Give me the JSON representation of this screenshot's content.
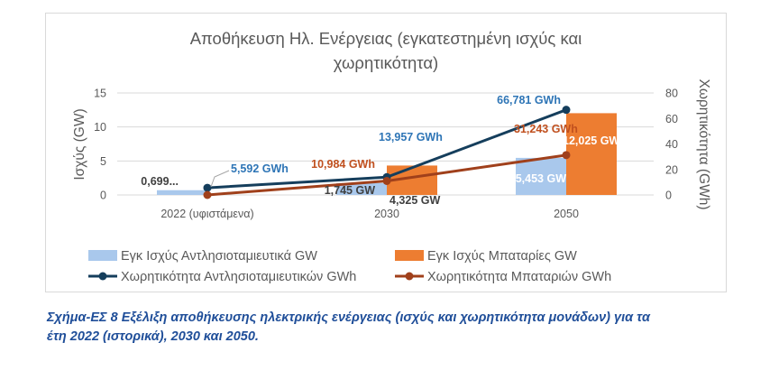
{
  "chart_data": {
    "type": "bar+line",
    "title": "Αποθήκευση Ηλ. Ενέργειας (εγκατεστημένη ισχύς και χωρητικότητα)",
    "title_lines": [
      "Αποθήκευση Ηλ. Ενέργειας (εγκατεστημένη ισχύς και",
      "χωρητικότητα)"
    ],
    "categories": [
      "2022 (υφιστάμενα)",
      "2030",
      "2050"
    ],
    "ylabel_left": "Ισχύς (GW)",
    "ylabel_right": "Χωρητικότητα (GWh)",
    "ylim_left": [
      0,
      15
    ],
    "yticks_left": [
      0,
      5,
      10,
      15
    ],
    "ylim_right": [
      0,
      80
    ],
    "yticks_right": [
      0,
      20,
      40,
      60,
      80
    ],
    "grid": true,
    "legend_position": "bottom",
    "bar_series": [
      {
        "name": "Εγκ Ισχύς Αντλησιοταμιευτικά GW",
        "color": "#a9c8ec",
        "axis": "left",
        "values": [
          0.699,
          1.745,
          5.453
        ],
        "labels": [
          "0,699...",
          "1,745 GW",
          "5,453 GW"
        ]
      },
      {
        "name": "Εγκ Ισχύς Μπαταρίες GW",
        "color": "#ed7d31",
        "axis": "left",
        "values": [
          0,
          4.325,
          12.025
        ],
        "labels": [
          "",
          "4,325 GW",
          "12,025 GW"
        ]
      }
    ],
    "line_series": [
      {
        "name": "Χωρητικότητα Αντλησιοταμιευτικών GWh",
        "color": "#153e5c",
        "axis": "right",
        "values": [
          5.592,
          13.957,
          66.781
        ],
        "labels": [
          "5,592 GWh",
          "13,957 GWh",
          "66,781 GWh"
        ]
      },
      {
        "name": "Χωρητικότητα Μπαταριών GWh",
        "color": "#a0401b",
        "axis": "right",
        "values": [
          0,
          10.984,
          31.243
        ],
        "labels": [
          "",
          "10,984 GWh",
          "31,243 GWh"
        ]
      }
    ]
  },
  "caption": {
    "line1": "Σχήμα-ΕΣ 8 Εξέλιξη αποθήκευσης ηλεκτρικής ενέργειας (ισχύς και χωρητικότητα μονάδων) για τα",
    "line2": "έτη 2022 (ιστορικά), 2030 και 2050."
  }
}
